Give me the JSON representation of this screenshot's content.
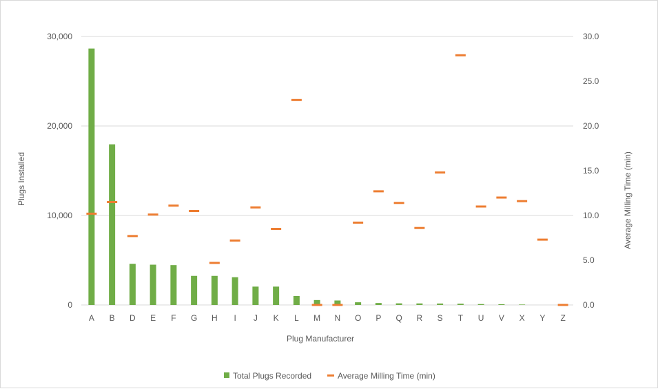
{
  "chart_data": {
    "type": "bar",
    "title": "",
    "xlabel": "Plug Manufacturer",
    "ylabel": "Plugs Installed",
    "y2label": "Average Milling Time (min)",
    "categories": [
      "A",
      "B",
      "D",
      "E",
      "F",
      "G",
      "H",
      "I",
      "J",
      "K",
      "L",
      "M",
      "N",
      "O",
      "P",
      "Q",
      "R",
      "S",
      "T",
      "U",
      "V",
      "X",
      "Y",
      "Z"
    ],
    "ylim": [
      0,
      30000
    ],
    "y2lim": [
      0,
      30
    ],
    "yticks": [
      "0",
      "10,000",
      "20,000",
      "30,000"
    ],
    "y2ticks": [
      "0.0",
      "5.0",
      "10.0",
      "15.0",
      "20.0",
      "25.0",
      "30.0"
    ],
    "grid": true,
    "legend_position": "bottom",
    "series": [
      {
        "name": "Total Plugs Recorded",
        "type": "bar",
        "axis": "left",
        "color": "#70ad47",
        "values": [
          28650,
          17950,
          4600,
          4500,
          4450,
          3250,
          3250,
          3100,
          2050,
          2050,
          1000,
          550,
          500,
          300,
          220,
          180,
          170,
          160,
          140,
          100,
          80,
          50,
          0,
          0
        ]
      },
      {
        "name": "Average Milling Time (min)",
        "type": "marker-dash",
        "axis": "right",
        "color": "#ed7d31",
        "values": [
          10.2,
          11.5,
          7.7,
          10.1,
          11.1,
          10.5,
          4.7,
          7.2,
          10.9,
          8.5,
          22.9,
          0.0,
          0.0,
          9.2,
          12.7,
          11.4,
          8.6,
          14.8,
          27.9,
          11.0,
          12.0,
          11.6,
          7.3,
          0.0
        ]
      }
    ]
  }
}
